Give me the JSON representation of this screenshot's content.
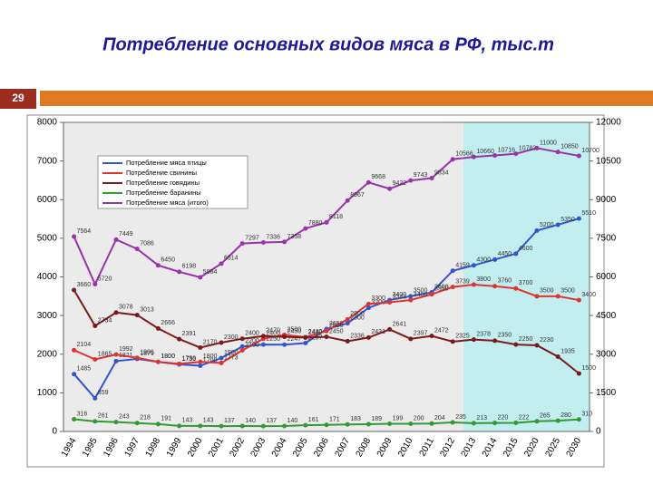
{
  "slide_number": "29",
  "chart_data": {
    "type": "line",
    "title": "Потребление основных видов мяса в РФ, тыс.т",
    "categories": [
      "1994",
      "1995",
      "1996",
      "1997",
      "1998",
      "1999",
      "2000",
      "2001",
      "2002",
      "2003",
      "2004",
      "2005",
      "2006",
      "2007",
      "2008",
      "2009",
      "2010",
      "2011",
      "2012",
      "2013",
      "2014",
      "2015",
      "2020",
      "2025",
      "2030"
    ],
    "highlight_start": 19,
    "ylim": [
      0,
      8000
    ],
    "yticks": [
      0,
      1000,
      2000,
      3000,
      4000,
      5000,
      6000,
      7000,
      8000
    ],
    "y2lim": [
      0,
      12000
    ],
    "y2ticks": [
      0,
      1500,
      3000,
      4500,
      6000,
      7500,
      9000,
      10500,
      12000
    ],
    "series": [
      {
        "name": "Потребление мяса птицы",
        "color": "#3355cc",
        "values": [
          1485,
          859,
          1821,
          1879,
          1800,
          1735,
          1700,
          1900,
          2200,
          2250,
          2247,
          2287,
          2650,
          2800,
          3200,
          3400,
          3500,
          3600,
          4159,
          4300,
          4450,
          4600,
          5200,
          5350,
          5510
        ]
      },
      {
        "name": "Потребление свинины",
        "color": "#dd3333",
        "values": [
          2104,
          1865,
          1992,
          1906,
          1800,
          1750,
          1800,
          1773,
          2100,
          2400,
          2500,
          2440,
          2600,
          2900,
          3300,
          3343,
          3400,
          3550,
          3739,
          3800,
          3760,
          3700,
          3500,
          3500,
          3400
        ]
      },
      {
        "name": "Потребление говядины",
        "color": "#7a1a1a",
        "values": [
          3660,
          2734,
          3078,
          3013,
          2666,
          2391,
          2170,
          2300,
          2400,
          2470,
          2450,
          2430,
          2450,
          2336,
          2431,
          2641,
          2397,
          2472,
          2325,
          2378,
          2350,
          2250,
          2230,
          1935,
          1500
        ]
      },
      {
        "name": "Потребление баранины",
        "color": "#339933",
        "values": [
          316,
          261,
          243,
          218,
          191,
          143,
          143,
          137,
          140,
          137,
          140,
          161,
          171,
          183,
          189,
          199,
          200,
          204,
          235,
          213,
          220,
          222,
          265,
          280,
          310
        ]
      },
      {
        "name": "Потребление мяса (итого)",
        "color": "#9933aa",
        "axis": "y2",
        "values": [
          7564,
          5720,
          7449,
          7086,
          6450,
          6198,
          5984,
          6514,
          7297,
          7336,
          7358,
          7880,
          8118,
          8967,
          9668,
          9422,
          9743,
          9834,
          10566,
          10660,
          10716,
          10783,
          11000,
          10850,
          10700
        ]
      }
    ]
  }
}
